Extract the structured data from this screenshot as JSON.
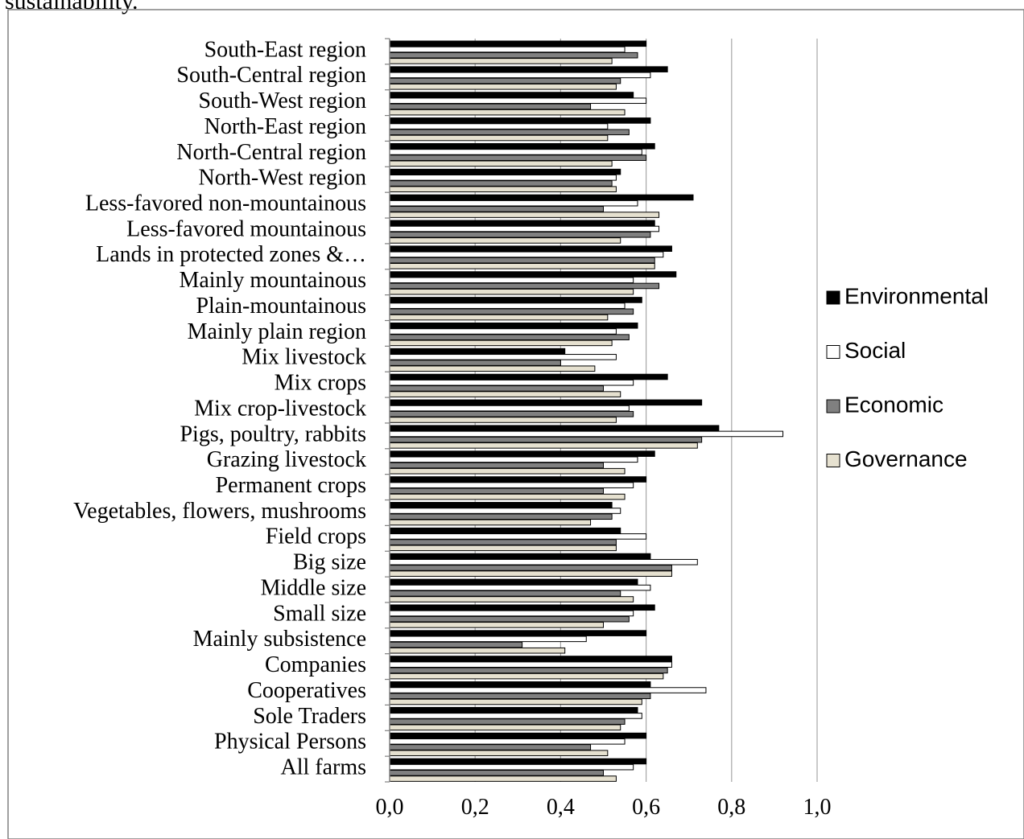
{
  "header": {
    "partial_text": "sustainability."
  },
  "chart_data": {
    "type": "bar",
    "orientation": "horizontal",
    "categories": [
      "South-East region",
      "South-Central region",
      "South-West region",
      "North-East region",
      "North-Central region",
      "North-West region",
      "Less-favored non-mountainous",
      "Less-favored mountainous",
      "Lands in protected zones &…",
      "Mainly mountainous",
      "Plain-mountainous",
      "Mainly plain region",
      "Mix livestock",
      "Mix crops",
      "Mix crop-livestock",
      "Pigs, poultry, rabbits",
      "Grazing livestock",
      "Permanent crops",
      "Vegetables, flowers, mushrooms",
      "Field crops",
      "Big size",
      "Middle size",
      "Small size",
      "Mainly subsistence",
      "Companies",
      "Cooperatives",
      "Sole Traders",
      "Physical Persons",
      "All farms"
    ],
    "series": [
      {
        "name": "Environmental",
        "color": "#000000",
        "values": [
          0.6,
          0.65,
          0.57,
          0.61,
          0.62,
          0.54,
          0.71,
          0.62,
          0.66,
          0.67,
          0.59,
          0.58,
          0.41,
          0.65,
          0.73,
          0.77,
          0.62,
          0.6,
          0.52,
          0.54,
          0.61,
          0.58,
          0.62,
          0.6,
          0.66,
          0.61,
          0.58,
          0.6,
          0.6
        ]
      },
      {
        "name": "Social",
        "color": "#ffffff",
        "values": [
          0.55,
          0.61,
          0.6,
          0.51,
          0.59,
          0.53,
          0.58,
          0.63,
          0.64,
          0.57,
          0.55,
          0.53,
          0.53,
          0.57,
          0.56,
          0.92,
          0.58,
          0.57,
          0.54,
          0.6,
          0.72,
          0.61,
          0.57,
          0.46,
          0.66,
          0.74,
          0.59,
          0.55,
          0.57
        ]
      },
      {
        "name": "Economic",
        "color": "#808080",
        "values": [
          0.58,
          0.54,
          0.47,
          0.56,
          0.6,
          0.52,
          0.5,
          0.61,
          0.62,
          0.63,
          0.57,
          0.56,
          0.4,
          0.5,
          0.57,
          0.73,
          0.5,
          0.5,
          0.52,
          0.53,
          0.66,
          0.54,
          0.56,
          0.31,
          0.65,
          0.61,
          0.55,
          0.47,
          0.5
        ]
      },
      {
        "name": "Governance",
        "color": "#e6e1d0",
        "values": [
          0.52,
          0.53,
          0.55,
          0.51,
          0.52,
          0.53,
          0.63,
          0.54,
          0.62,
          0.57,
          0.51,
          0.52,
          0.48,
          0.54,
          0.53,
          0.72,
          0.55,
          0.55,
          0.47,
          0.53,
          0.66,
          0.57,
          0.5,
          0.41,
          0.64,
          0.59,
          0.54,
          0.51,
          0.53
        ]
      }
    ],
    "xlim": [
      0.0,
      1.0
    ],
    "xticks": [
      "0,0",
      "0,2",
      "0,4",
      "0,6",
      "0,8",
      "1,0"
    ],
    "grid": true,
    "legend": "right",
    "title": "",
    "xlabel": "",
    "ylabel": ""
  }
}
